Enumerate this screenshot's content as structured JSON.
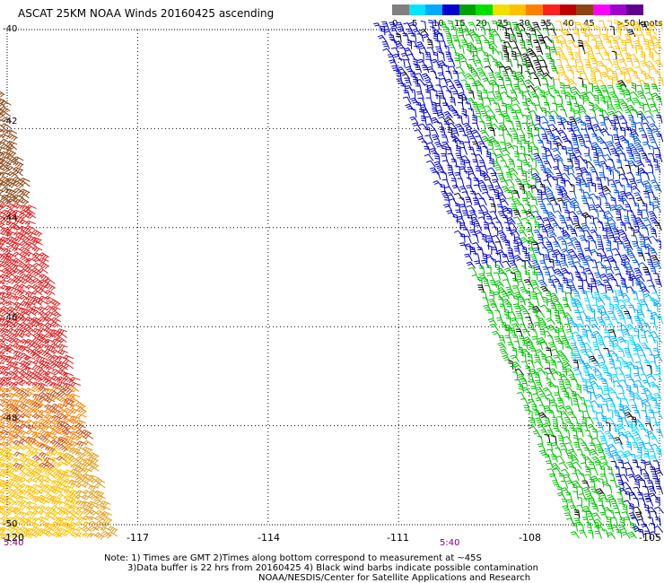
{
  "title": "ASCAT 25KM NOAA Winds 20160425 ascending",
  "legend": {
    "colors": [
      "#808080",
      "#00e5ff",
      "#00aaff",
      "#0000d0",
      "#00a000",
      "#00e000",
      "#f0e000",
      "#ffc000",
      "#ff8000",
      "#ff2020",
      "#c00000",
      "#8b4513",
      "#ff00ff",
      "#a000d0",
      "#600090"
    ],
    "labels": [
      "0",
      "5",
      "10",
      "15",
      "20",
      "25",
      "30",
      "35",
      "40",
      "45",
      ">50 knots"
    ],
    "label_colors": [
      "#000",
      "#000",
      "#000",
      "#000",
      "#000",
      "#000",
      "#000",
      "#000",
      "#000",
      "#000",
      "#000"
    ]
  },
  "axes": {
    "lat_labels": [
      "-40",
      "-42",
      "-44",
      "-46",
      "-48",
      "-50"
    ],
    "lon_labels": [
      "-120",
      "-117",
      "-114",
      "-111",
      "-108",
      "-105"
    ],
    "lat_range": [
      -50,
      -40
    ],
    "lon_range": [
      -120,
      -105
    ],
    "grid": "dotted"
  },
  "time_labels": [
    "5:40",
    "5:40"
  ],
  "notes": {
    "line1": "Note: 1) Times are GMT 2)Times along bottom correspond to measurement at ~45S",
    "line2": "3)Data buffer is 22 hrs from 20160425 4) Black wind barbs indicate possible contamination",
    "line3": "NOAA/NESDIS/Center for Satellite Applications and Research"
  },
  "swaths": [
    {
      "name": "west-swath",
      "side": "west"
    },
    {
      "name": "east-swath",
      "side": "east"
    }
  ]
}
